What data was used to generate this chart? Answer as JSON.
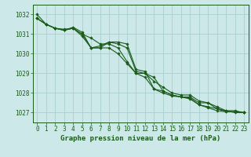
{
  "background_color": "#cce8e8",
  "grid_color": "#aacfcf",
  "line_color": "#1a5c1a",
  "marker_color": "#1a5c1a",
  "xlabel": "Graphe pression niveau de la mer (hPa)",
  "xlabel_fontsize": 6.5,
  "tick_fontsize": 5.5,
  "ylim": [
    1026.5,
    1032.5
  ],
  "xlim": [
    -0.5,
    23.5
  ],
  "yticks": [
    1027,
    1028,
    1029,
    1030,
    1031,
    1032
  ],
  "xticks": [
    0,
    1,
    2,
    3,
    4,
    5,
    6,
    7,
    8,
    9,
    10,
    11,
    12,
    13,
    14,
    15,
    16,
    17,
    18,
    19,
    20,
    21,
    22,
    23
  ],
  "series": [
    [
      1032.0,
      1031.5,
      1031.3,
      1031.2,
      1031.3,
      1031.0,
      1030.3,
      1030.4,
      1030.6,
      1030.5,
      1030.3,
      1029.1,
      1029.0,
      1028.8,
      1028.1,
      1027.9,
      1027.8,
      1027.8,
      1027.5,
      1027.5,
      1027.2,
      1027.1,
      1027.0,
      1027.0
    ],
    [
      1031.8,
      1031.5,
      1031.3,
      1031.2,
      1031.3,
      1031.0,
      1030.8,
      1030.5,
      1030.5,
      1030.3,
      1029.6,
      1029.0,
      1029.0,
      1028.6,
      1028.3,
      1028.0,
      1027.9,
      1027.9,
      1027.6,
      1027.5,
      1027.3,
      1027.1,
      1027.1,
      1027.0
    ],
    [
      1031.8,
      1031.5,
      1031.3,
      1031.25,
      1031.3,
      1030.9,
      1030.3,
      1030.3,
      1030.6,
      1030.6,
      1030.5,
      1029.2,
      1029.1,
      1028.2,
      1028.1,
      1027.9,
      1027.8,
      1027.7,
      1027.4,
      1027.3,
      1027.2,
      1027.05,
      1027.05,
      1027.0
    ],
    [
      1031.8,
      1031.5,
      1031.3,
      1031.2,
      1031.35,
      1031.1,
      1030.3,
      1030.3,
      1030.3,
      1030.0,
      1029.5,
      1029.0,
      1028.8,
      1028.2,
      1028.0,
      1027.85,
      1027.8,
      1027.75,
      1027.4,
      1027.25,
      1027.1,
      1027.05,
      1027.05,
      1027.0
    ]
  ]
}
